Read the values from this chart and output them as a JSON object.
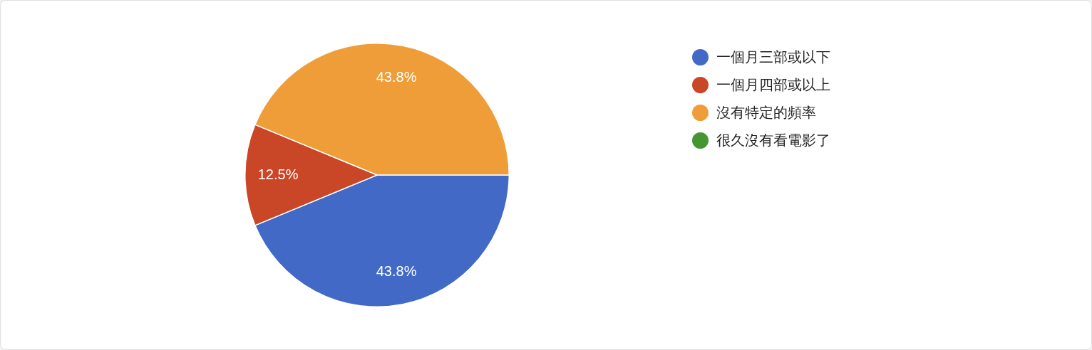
{
  "chart_data": {
    "type": "pie",
    "categories": [
      "一個月三部或以下",
      "一個月四部或以上",
      "沒有特定的頻率",
      "很久沒有看電影了"
    ],
    "values": [
      43.8,
      12.5,
      43.8,
      0
    ],
    "colors": [
      "#4169c5",
      "#c94627",
      "#ee9d38",
      "#459632"
    ],
    "value_labels": [
      "43.8%",
      "12.5%",
      "43.8%",
      null
    ],
    "legend": "right"
  }
}
